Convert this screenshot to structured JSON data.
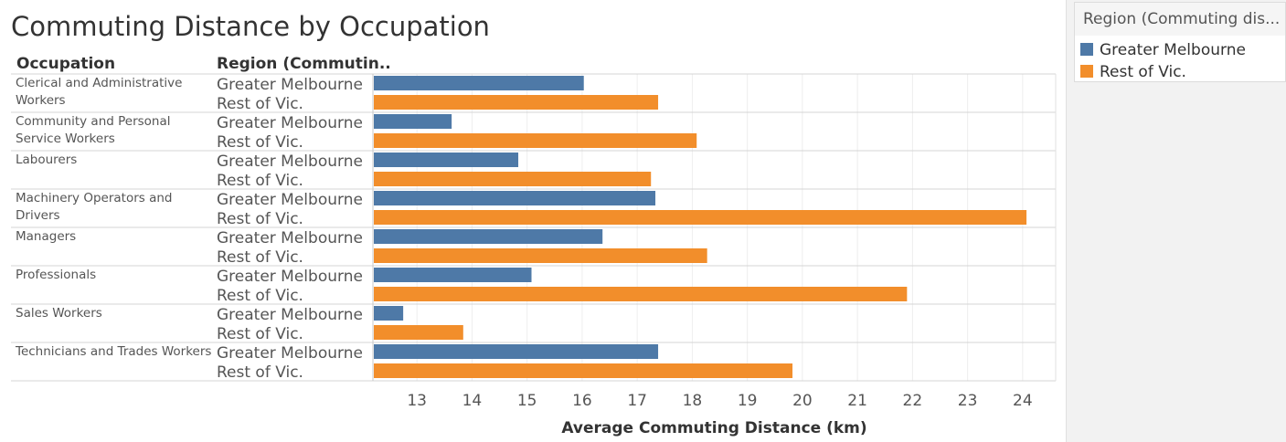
{
  "title": "Commuting Distance by Occupation",
  "legend": {
    "title": "Region (Commuting dis...",
    "items": [
      {
        "label": "Greater Melbourne",
        "color": "#4e79a7"
      },
      {
        "label": "Rest of Vic.",
        "color": "#f28e2b"
      }
    ]
  },
  "chart_data": {
    "type": "bar",
    "orientation": "horizontal",
    "title": "Commuting Distance by Occupation",
    "row_headers": [
      "Occupation",
      "Region (Commutin.."
    ],
    "xlabel": "Average Commuting Distance (km)",
    "xlim": [
      12.2,
      24.6
    ],
    "xticks": [
      13,
      14,
      15,
      16,
      17,
      18,
      19,
      20,
      21,
      22,
      23,
      24
    ],
    "grid": true,
    "legend_position": "right",
    "categories": [
      "Clerical and Administrative Workers",
      "Community and Personal Service Workers",
      "Labourers",
      "Machinery Operators and Drivers",
      "Managers",
      "Professionals",
      "Sales Workers",
      "Technicians and Trades Workers"
    ],
    "category_display_lines": [
      [
        "Clerical and Administrative",
        "Workers"
      ],
      [
        "Community and Personal",
        "Service Workers"
      ],
      [
        "Labourers"
      ],
      [
        "Machinery Operators and",
        "Drivers"
      ],
      [
        "Managers"
      ],
      [
        "Professionals"
      ],
      [
        "Sales Workers"
      ],
      [
        "Technicians and Trades Workers"
      ]
    ],
    "series": [
      {
        "name": "Greater Melbourne",
        "color": "#4e79a7",
        "values": [
          16.03,
          13.63,
          14.84,
          17.33,
          16.37,
          15.08,
          12.75,
          17.38
        ]
      },
      {
        "name": "Rest of Vic.",
        "color": "#f28e2b",
        "values": [
          17.38,
          18.08,
          17.25,
          24.07,
          18.27,
          21.9,
          13.84,
          19.82
        ]
      }
    ]
  }
}
